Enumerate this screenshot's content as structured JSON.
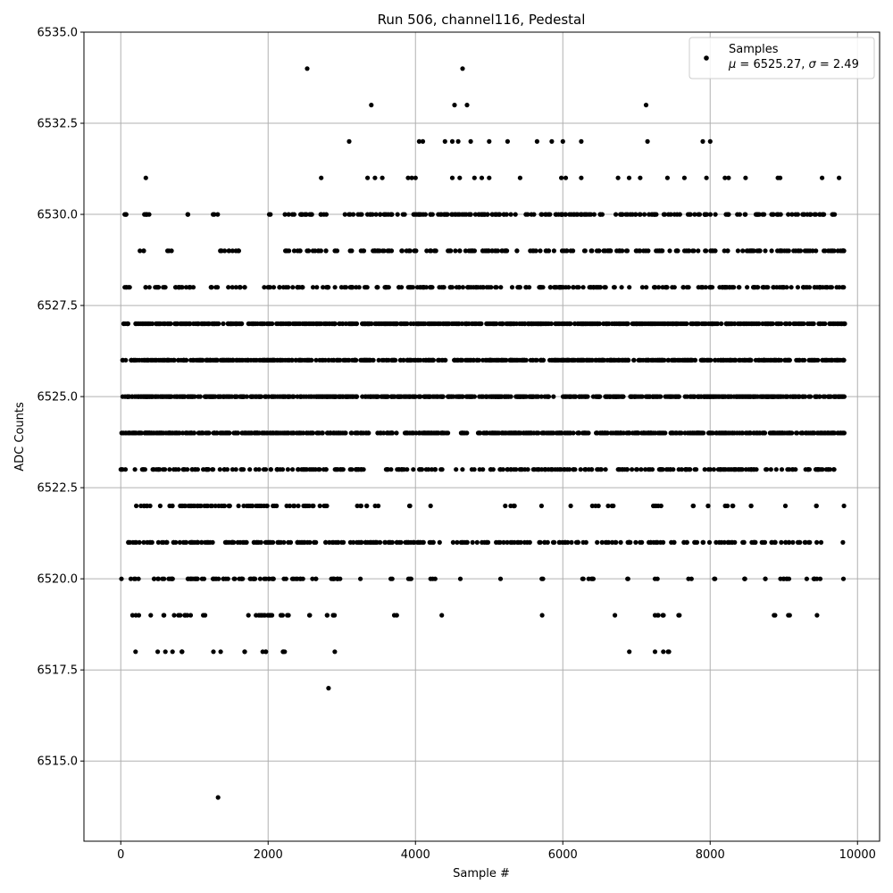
{
  "chart_data": {
    "type": "scatter",
    "title": "Run 506, channel116, Pedestal",
    "xlabel": "Sample #",
    "ylabel": "ADC Counts",
    "xlim": [
      -500,
      10300
    ],
    "ylim": [
      6512.8,
      6535
    ],
    "xticks": [
      0,
      2000,
      4000,
      6000,
      8000,
      10000
    ],
    "xtick_labels": [
      "0",
      "2000",
      "4000",
      "6000",
      "8000",
      "10000"
    ],
    "yticks": [
      6515.0,
      6517.5,
      6520.0,
      6522.5,
      6525.0,
      6527.5,
      6530.0,
      6532.5,
      6535.0
    ],
    "ytick_labels": [
      "6515.0",
      "6517.5",
      "6520.0",
      "6522.5",
      "6525.0",
      "6527.5",
      "6530.0",
      "6532.5",
      "6535.0"
    ],
    "grid": true,
    "legend": {
      "placement": "top-right",
      "label": "Samples",
      "stats_mu": "6525.27",
      "stats_sigma": "2.49"
    },
    "series_color": "#000000",
    "n_samples": 9830,
    "level_ranges": {
      "6521": [
        [
          100,
          9830
        ]
      ],
      "6522": [
        [
          200,
          2800
        ],
        [
          3200,
          3350
        ],
        [
          3450,
          3500
        ],
        [
          3900,
          3950
        ],
        [
          4180,
          4210
        ],
        [
          5150,
          5350
        ],
        [
          5700,
          5720
        ],
        [
          6100,
          6110
        ],
        [
          6400,
          6500
        ],
        [
          6600,
          6700
        ],
        [
          7200,
          7350
        ],
        [
          7750,
          7800
        ],
        [
          7950,
          8000
        ],
        [
          8200,
          8350
        ],
        [
          8550,
          8600
        ],
        [
          9000,
          9030
        ],
        [
          9400,
          9450
        ],
        [
          9800,
          9830
        ]
      ],
      "6520": [
        [
          0,
          20
        ],
        [
          130,
          250
        ],
        [
          400,
          1200
        ],
        [
          1250,
          2500
        ],
        [
          2600,
          2700
        ],
        [
          2850,
          3100
        ],
        [
          3250,
          3260
        ],
        [
          3650,
          3700
        ],
        [
          3850,
          3950
        ],
        [
          4200,
          4300
        ],
        [
          4600,
          4620
        ],
        [
          5150,
          5160
        ],
        [
          5700,
          5760
        ],
        [
          6250,
          6450
        ],
        [
          6850,
          6900
        ],
        [
          7250,
          7300
        ],
        [
          7700,
          7750
        ],
        [
          8050,
          8100
        ],
        [
          8400,
          8500
        ],
        [
          8700,
          8750
        ],
        [
          8900,
          9100
        ],
        [
          9300,
          9500
        ],
        [
          9800,
          9830
        ]
      ],
      "6519": [
        [
          150,
          250
        ],
        [
          400,
          420
        ],
        [
          550,
          600
        ],
        [
          700,
          950
        ],
        [
          1100,
          1150
        ],
        [
          1650,
          2300
        ],
        [
          2550,
          2600
        ],
        [
          2800,
          2950
        ],
        [
          3700,
          3750
        ],
        [
          4350,
          4360
        ],
        [
          5700,
          5720
        ],
        [
          6700,
          6720
        ],
        [
          7200,
          7400
        ],
        [
          7550,
          7600
        ],
        [
          8850,
          8900
        ],
        [
          9050,
          9100
        ],
        [
          9450,
          9460
        ]
      ],
      "6518": [
        [
          200,
          210
        ],
        [
          500,
          520
        ],
        [
          600,
          620
        ],
        [
          700,
          720
        ],
        [
          800,
          900
        ],
        [
          1250,
          1260
        ],
        [
          1350,
          1360
        ],
        [
          1650,
          1700
        ],
        [
          1900,
          2000
        ],
        [
          2150,
          2250
        ],
        [
          2900,
          2910
        ],
        [
          6900,
          6910
        ],
        [
          7250,
          7270
        ],
        [
          7350,
          7450
        ]
      ],
      "6523": [
        [
          0,
          3300
        ],
        [
          3600,
          4450
        ],
        [
          4550,
          9830
        ]
      ],
      "6524": [
        [
          0,
          3750
        ],
        [
          3800,
          4450
        ],
        [
          4600,
          4700
        ],
        [
          4850,
          9830
        ]
      ],
      "6525": [
        [
          0,
          9830
        ]
      ],
      "6526": [
        [
          0,
          9830
        ]
      ],
      "6527": [
        [
          0,
          9830
        ]
      ],
      "6528": [
        [
          0,
          150
        ],
        [
          300,
          1100
        ],
        [
          1200,
          1350
        ],
        [
          1450,
          1700
        ],
        [
          1900,
          9830
        ]
      ],
      "6529": [
        [
          250,
          350
        ],
        [
          600,
          700
        ],
        [
          1350,
          1700
        ],
        [
          2200,
          2800
        ],
        [
          2900,
          3000
        ],
        [
          3100,
          9830
        ]
      ],
      "6530": [
        [
          0,
          100
        ],
        [
          250,
          400
        ],
        [
          900,
          950
        ],
        [
          1250,
          1350
        ],
        [
          2000,
          2050
        ],
        [
          2200,
          2800
        ],
        [
          3000,
          3700
        ],
        [
          3750,
          9830
        ]
      ]
    },
    "outliers": [
      {
        "x": 1320,
        "y": 6514
      },
      {
        "x": 2820,
        "y": 6517
      },
      {
        "x": 2530,
        "y": 6534
      },
      {
        "x": 4640,
        "y": 6534
      },
      {
        "x": 3400,
        "y": 6533
      },
      {
        "x": 4530,
        "y": 6533
      },
      {
        "x": 4700,
        "y": 6533
      },
      {
        "x": 7130,
        "y": 6533
      },
      {
        "x": 3100,
        "y": 6532
      },
      {
        "x": 4050,
        "y": 6532
      },
      {
        "x": 4100,
        "y": 6532
      },
      {
        "x": 4400,
        "y": 6532
      },
      {
        "x": 4500,
        "y": 6532
      },
      {
        "x": 4580,
        "y": 6532
      },
      {
        "x": 4750,
        "y": 6532
      },
      {
        "x": 5000,
        "y": 6532
      },
      {
        "x": 5250,
        "y": 6532
      },
      {
        "x": 5650,
        "y": 6532
      },
      {
        "x": 5850,
        "y": 6532
      },
      {
        "x": 6000,
        "y": 6532
      },
      {
        "x": 6250,
        "y": 6532
      },
      {
        "x": 7150,
        "y": 6532
      },
      {
        "x": 7900,
        "y": 6532
      },
      {
        "x": 8000,
        "y": 6532
      },
      {
        "x": 340,
        "y": 6531
      },
      {
        "x": 2720,
        "y": 6531
      },
      {
        "x": 3350,
        "y": 6531
      },
      {
        "x": 3450,
        "y": 6531
      },
      {
        "x": 3550,
        "y": 6531
      },
      {
        "x": 3900,
        "y": 6531
      },
      {
        "x": 3950,
        "y": 6531
      },
      {
        "x": 4000,
        "y": 6531
      },
      {
        "x": 4500,
        "y": 6531
      },
      {
        "x": 4600,
        "y": 6531
      },
      {
        "x": 4800,
        "y": 6531
      },
      {
        "x": 4900,
        "y": 6531
      },
      {
        "x": 5000,
        "y": 6531
      },
      {
        "x": 5420,
        "y": 6531
      },
      {
        "x": 5980,
        "y": 6531
      },
      {
        "x": 6040,
        "y": 6531
      },
      {
        "x": 6250,
        "y": 6531
      },
      {
        "x": 6750,
        "y": 6531
      },
      {
        "x": 6900,
        "y": 6531
      },
      {
        "x": 7050,
        "y": 6531
      },
      {
        "x": 7420,
        "y": 6531
      },
      {
        "x": 7650,
        "y": 6531
      },
      {
        "x": 7950,
        "y": 6531
      },
      {
        "x": 8200,
        "y": 6531
      },
      {
        "x": 8250,
        "y": 6531
      },
      {
        "x": 8480,
        "y": 6531
      },
      {
        "x": 8920,
        "y": 6531
      },
      {
        "x": 8950,
        "y": 6531
      },
      {
        "x": 9520,
        "y": 6531
      },
      {
        "x": 9750,
        "y": 6531
      }
    ]
  }
}
